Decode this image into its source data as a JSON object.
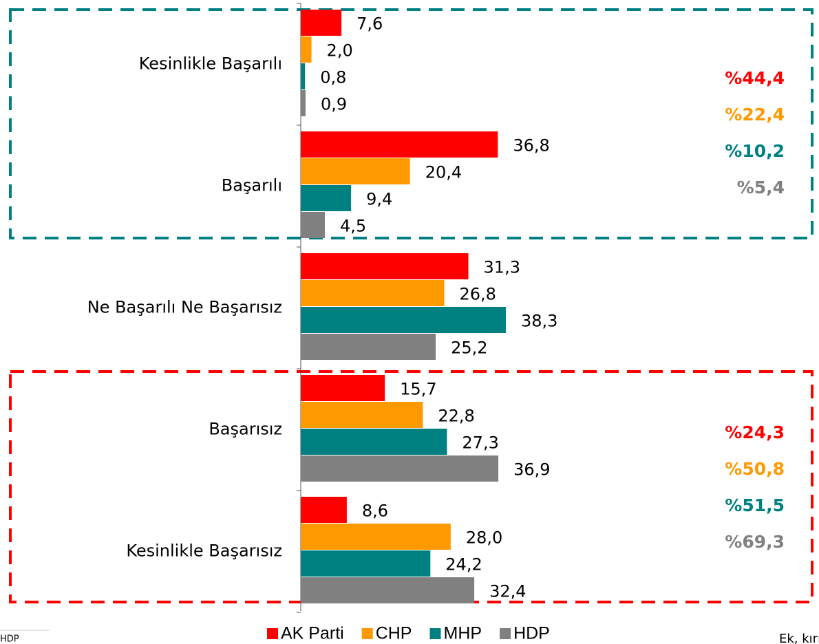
{
  "chart_data": {
    "type": "bar",
    "orientation": "horizontal",
    "categories": [
      "Kesinlikle Başarılı",
      "Başarılı",
      "Ne Başarılı Ne Başarısız",
      "Başarısız",
      "Kesinlikle Başarısız"
    ],
    "series": [
      {
        "name": "AK Parti",
        "color": "#ff0000",
        "values": [
          7.6,
          36.8,
          31.3,
          15.7,
          8.6
        ],
        "value_labels": [
          "7,6",
          "36,8",
          "31,3",
          "15,7",
          "8,6"
        ]
      },
      {
        "name": "CHP",
        "color": "#ff9900",
        "values": [
          2.0,
          20.4,
          26.8,
          22.8,
          28.0
        ],
        "value_labels": [
          "2,0",
          "20,4",
          "26,8",
          "22,8",
          "28,0"
        ]
      },
      {
        "name": "MHP",
        "color": "#008080",
        "values": [
          0.8,
          9.4,
          38.3,
          27.3,
          24.2
        ],
        "value_labels": [
          "0,8",
          "9,4",
          "38,3",
          "27,3",
          "24,2"
        ]
      },
      {
        "name": "HDP",
        "color": "#808080",
        "values": [
          0.9,
          4.5,
          25.2,
          36.9,
          32.4
        ],
        "value_labels": [
          "0,9",
          "4,5",
          "25,2",
          "36,9",
          "32,4"
        ]
      }
    ],
    "annotations": [
      {
        "group": [
          {
            "text": "%44,4",
            "color": "#ff0000"
          },
          {
            "text": "%22,4",
            "color": "#ff9900"
          },
          {
            "text": "%10,2",
            "color": "#008080"
          },
          {
            "text": "%5,4",
            "color": "#808080"
          }
        ]
      },
      {
        "group": [
          {
            "text": "%24,3",
            "color": "#ff0000"
          },
          {
            "text": "%50,8",
            "color": "#ff9900"
          },
          {
            "text": "%51,5",
            "color": "#008080"
          },
          {
            "text": "%69,3",
            "color": "#808080"
          }
        ]
      }
    ],
    "footnotes": [
      "HDP",
      "Ek, kırıl"
    ]
  }
}
